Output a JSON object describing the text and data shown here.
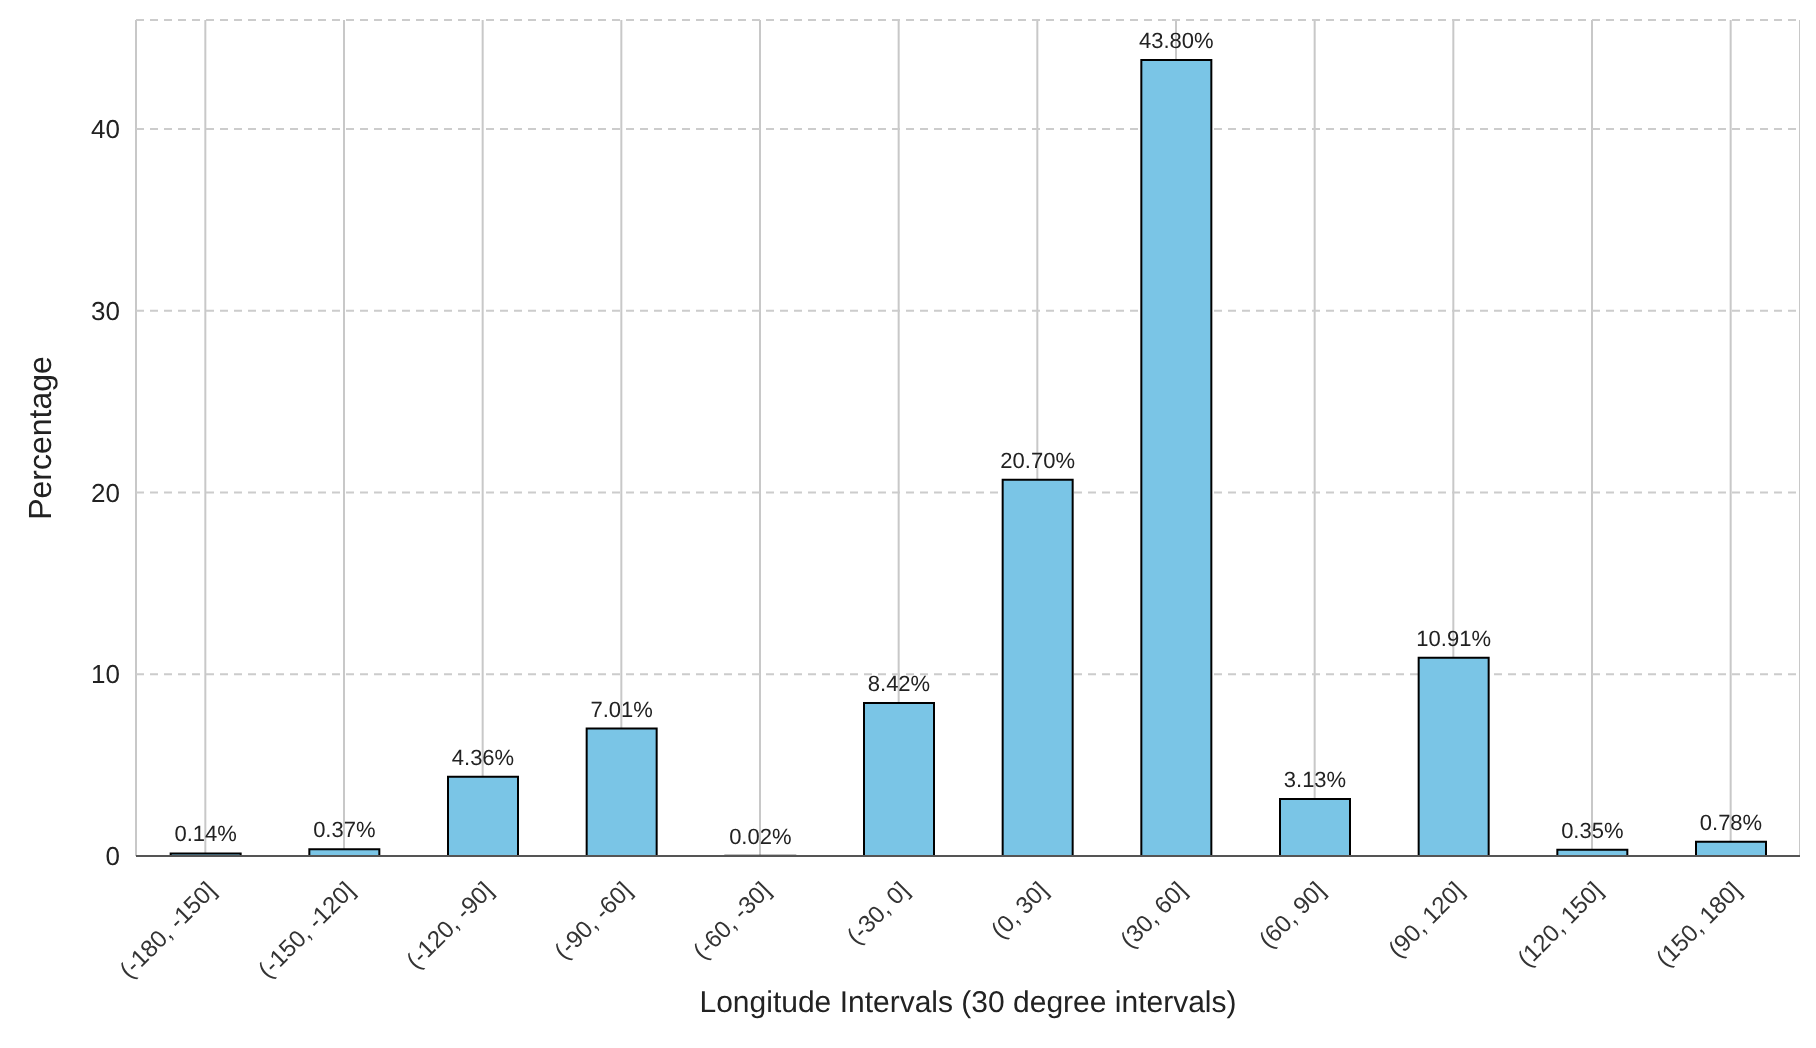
{
  "chart_data": {
    "type": "bar",
    "xlabel": "Longitude Intervals (30 degree intervals)",
    "ylabel": "Percentage",
    "categories": [
      "(-180, -150]",
      "(-150, -120]",
      "(-120, -90]",
      "(-90, -60]",
      "(-60, -30]",
      "(-30, 0]",
      "(0, 30]",
      "(30, 60]",
      "(60, 90]",
      "(90, 120]",
      "(120, 150]",
      "(150, 180]"
    ],
    "values": [
      0.14,
      0.37,
      4.36,
      7.01,
      0.02,
      8.42,
      20.7,
      43.8,
      3.13,
      10.91,
      0.35,
      0.78
    ],
    "value_labels": [
      "0.14%",
      "0.37%",
      "4.36%",
      "7.01%",
      "0.02%",
      "8.42%",
      "20.70%",
      "43.80%",
      "3.13%",
      "10.91%",
      "0.35%",
      "0.78%"
    ],
    "color": "#7ac5e6",
    "ylim": [
      0,
      46
    ],
    "yticks": [
      0,
      10,
      20,
      30,
      40
    ],
    "grid": true
  }
}
